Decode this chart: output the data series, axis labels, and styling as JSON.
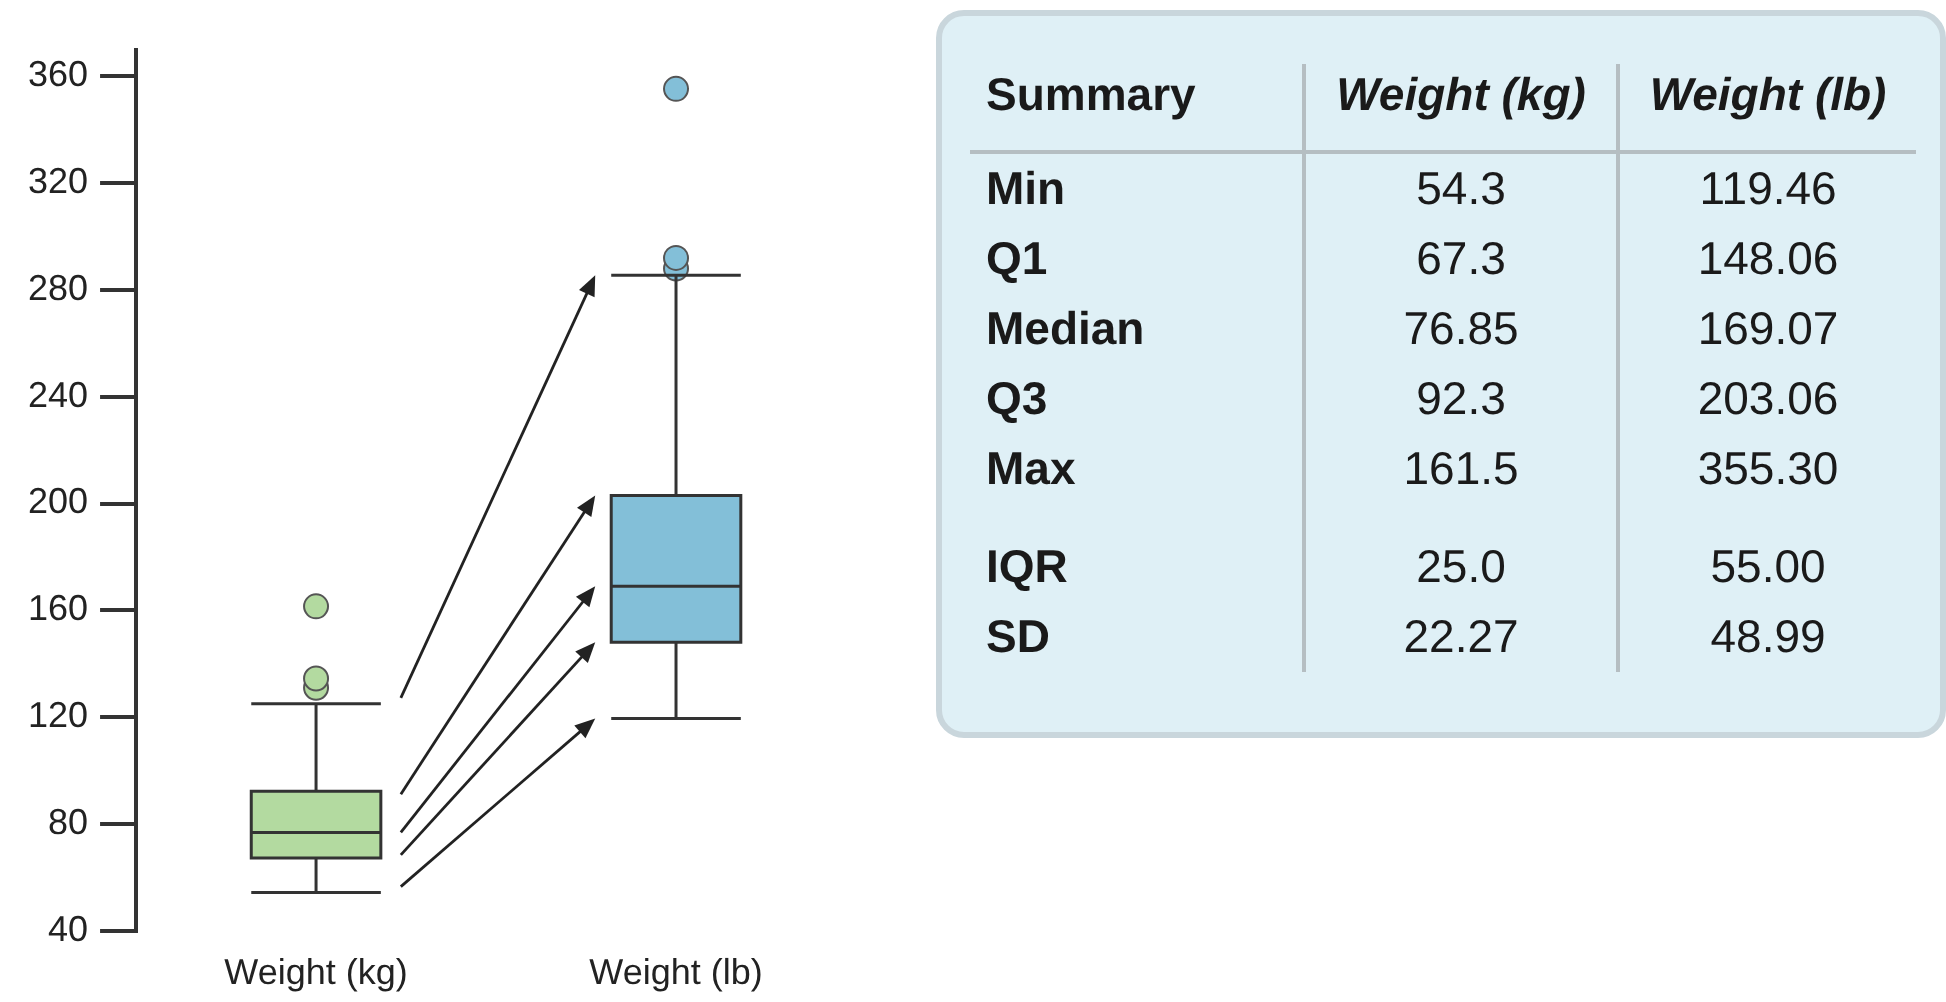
{
  "chart_data": [
    {
      "type": "box",
      "categories": [
        "Weight (kg)",
        "Weight (lb)"
      ],
      "boxes": [
        {
          "low": 54.3,
          "q1": 67.3,
          "median": 76.85,
          "q3": 92.3,
          "high": 125,
          "outliers": [
            131,
            134.5,
            161.5
          ]
        },
        {
          "low": 119.46,
          "q1": 148.06,
          "median": 169.07,
          "q3": 203.06,
          "high": 285.5,
          "outliers": [
            288,
            292,
            355.3
          ]
        }
      ],
      "colors": [
        "#b3daa0",
        "#83bfd8"
      ],
      "ylim": [
        40,
        370
      ],
      "yticks": [
        40,
        80,
        120,
        160,
        200,
        240,
        280,
        320,
        360
      ],
      "grid": false,
      "legend": false
    },
    {
      "type": "other",
      "annotations": [
        "Summary",
        "Weight (kg)",
        "Weight (lb)",
        "Min",
        "54.3",
        "119.46",
        "Q1",
        "67.3",
        "148.06",
        "Median",
        "76.85",
        "169.07",
        "Q3",
        "92.3",
        "203.06",
        "Max",
        "161.5",
        "355.30",
        "IQR",
        "25.0",
        "55.00",
        "SD",
        "22.27",
        "48.99"
      ]
    }
  ]
}
